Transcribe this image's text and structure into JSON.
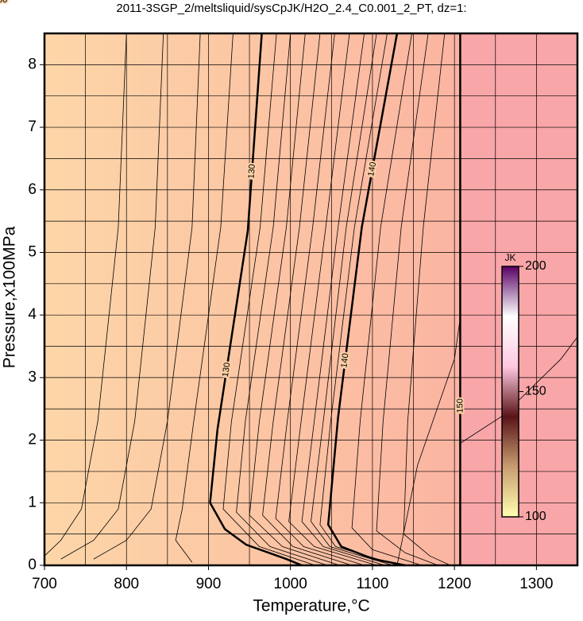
{
  "chart_data": {
    "type": "contour",
    "title": "2011-3SGP_2/meltsliquid/sysCpJK/H2O_2.4_C0.001_2_PT, dz=1:",
    "xlabel": "Temperature,°C",
    "ylabel": "Pressure,x100MPa",
    "xlim": [
      700,
      1350
    ],
    "ylim": [
      0,
      8.5
    ],
    "xticks": [
      700,
      800,
      900,
      1000,
      1100,
      1200,
      1300
    ],
    "xminor": [
      750,
      850,
      950,
      1050,
      1150,
      1250,
      1350
    ],
    "yticks": [
      0,
      1,
      2,
      3,
      4,
      5,
      6,
      7,
      8
    ],
    "yminor": [
      0.5,
      1.5,
      2.5,
      3.5,
      4.5,
      5.5,
      6.5,
      7.5,
      8.5
    ],
    "grid": true,
    "fill_colors": [
      "#fdd6a8",
      "#fcc6a4",
      "#fbb4a2"
    ],
    "right_region": {
      "x": 1207,
      "color": "#f9a6a8"
    },
    "labeled_every": 10,
    "contours": [
      {
        "level": 126,
        "x": [
          800,
          790,
          765,
          745,
          720,
          700
        ],
        "y": [
          8.5,
          5.4,
          2.3,
          0.9,
          0.4,
          0.15
        ]
      },
      {
        "level": 127,
        "x": [
          845,
          835,
          810,
          790,
          760,
          720
        ],
        "y": [
          8.5,
          5.4,
          2.3,
          0.9,
          0.4,
          0.1
        ]
      },
      {
        "level": 128,
        "x": [
          890,
          880,
          850,
          830,
          800,
          760
        ],
        "y": [
          8.5,
          5.4,
          2.3,
          0.9,
          0.4,
          0.1
        ]
      },
      {
        "level": 129,
        "x": [
          930,
          915,
          882,
          868,
          860,
          880
        ],
        "y": [
          8.5,
          5.4,
          2.3,
          0.9,
          0.4,
          0.05
        ]
      },
      {
        "level": 130,
        "x": [
          965,
          948,
          911,
          902,
          920,
          946,
          995,
          1014
        ],
        "y": [
          8.5,
          5.35,
          2.17,
          1.0,
          0.58,
          0.33,
          0.1,
          0
        ]
      },
      {
        "level": 131,
        "x": [
          983,
          963,
          928,
          918,
          962,
          1030
        ],
        "y": [
          8.5,
          5.4,
          2.3,
          0.9,
          0.3,
          0
        ]
      },
      {
        "level": 132,
        "x": [
          1000,
          979,
          945,
          934,
          975,
          1045
        ],
        "y": [
          8.5,
          5.4,
          2.3,
          0.85,
          0.3,
          0
        ]
      },
      {
        "level": 133,
        "x": [
          1018,
          995,
          962,
          950,
          990,
          1060
        ],
        "y": [
          8.5,
          5.4,
          2.3,
          0.8,
          0.3,
          0
        ]
      },
      {
        "level": 134,
        "x": [
          1036,
          1011,
          979,
          966,
          1003,
          1075
        ],
        "y": [
          8.5,
          5.4,
          2.3,
          0.8,
          0.3,
          0
        ]
      },
      {
        "level": 135,
        "x": [
          1054,
          1027,
          996,
          982,
          1016,
          1090
        ],
        "y": [
          8.5,
          5.4,
          2.3,
          0.75,
          0.3,
          0
        ]
      },
      {
        "level": 136,
        "x": [
          1072,
          1043,
          1013,
          998,
          1029,
          1105
        ],
        "y": [
          8.5,
          5.4,
          2.3,
          0.7,
          0.3,
          0
        ]
      },
      {
        "level": 137,
        "x": [
          1090,
          1058,
          1029,
          1014,
          1040,
          1115
        ],
        "y": [
          8.5,
          5.4,
          2.3,
          0.7,
          0.3,
          0
        ]
      },
      {
        "level": 138,
        "x": [
          1105,
          1068,
          1040,
          1025,
          1048,
          1125
        ],
        "y": [
          8.5,
          5.4,
          2.3,
          0.7,
          0.3,
          0
        ]
      },
      {
        "level": 139,
        "x": [
          1118,
          1078,
          1049,
          1036,
          1055,
          1132
        ],
        "y": [
          8.5,
          5.4,
          2.3,
          0.65,
          0.3,
          0
        ]
      },
      {
        "level": 140,
        "x": [
          1130,
          1087,
          1058,
          1046,
          1062,
          1101,
          1140
        ],
        "y": [
          8.5,
          5.4,
          2.36,
          0.65,
          0.3,
          0.1,
          0
        ]
      },
      {
        "level": 141,
        "x": [
          1148,
          1110,
          1085,
          1075,
          1100,
          1160
        ],
        "y": [
          8.5,
          5.4,
          2.3,
          0.6,
          0.25,
          0
        ]
      },
      {
        "level": 142,
        "x": [
          1168,
          1135,
          1113,
          1105,
          1140,
          1180
        ],
        "y": [
          8.5,
          5.4,
          2.3,
          0.55,
          0.2,
          0
        ]
      },
      {
        "level": 143,
        "x": [
          1188,
          1162,
          1143,
          1138,
          1170,
          1195
        ],
        "y": [
          8.5,
          5.4,
          2.3,
          0.5,
          0.15,
          0
        ]
      },
      {
        "level": 144,
        "x": [
          1207,
          1200,
          1155,
          1130
        ],
        "y": [
          3.95,
          3.3,
          1.6,
          0
        ]
      },
      {
        "level": 150,
        "x": [
          1207,
          1207
        ],
        "y": [
          8.5,
          0
        ]
      },
      {
        "level": 151,
        "x": [
          1207,
          1260,
          1330,
          1350
        ],
        "y": [
          1.95,
          2.4,
          3.3,
          3.65
        ]
      }
    ],
    "colorbar": {
      "label": "JK",
      "min": 100,
      "max": 200,
      "ticks": [
        100,
        150,
        200
      ],
      "colors": [
        "#ffffb0",
        "#c89c70",
        "#5a1418",
        "#ffc8e0",
        "#ffffff",
        "#5a0064"
      ]
    }
  }
}
